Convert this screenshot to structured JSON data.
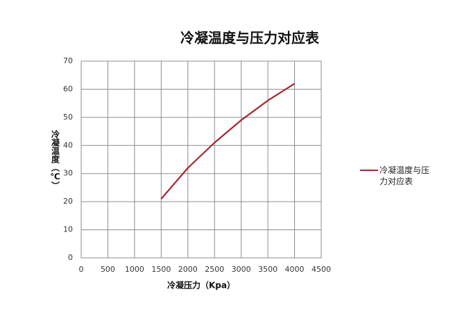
{
  "chart_data": {
    "type": "line",
    "title": "冷凝温度与压力对应表",
    "x_label": "冷凝压力（Kpa）",
    "y_label": "冷凝温度（℃）",
    "x": [
      1500,
      2000,
      2500,
      3000,
      3500,
      4000
    ],
    "series": [
      {
        "name": "冷凝温度与压力对应表",
        "color": "#a3262c",
        "values": [
          21,
          32,
          41,
          49,
          56,
          62
        ]
      }
    ],
    "xlim": [
      0,
      4500
    ],
    "xticks": [
      0,
      500,
      1000,
      1500,
      2000,
      2500,
      3000,
      3500,
      4000,
      4500
    ],
    "ylim": [
      0,
      70
    ],
    "yticks": [
      0,
      10,
      20,
      30,
      40,
      50,
      60,
      70
    ],
    "grid": true,
    "legend": "right"
  }
}
